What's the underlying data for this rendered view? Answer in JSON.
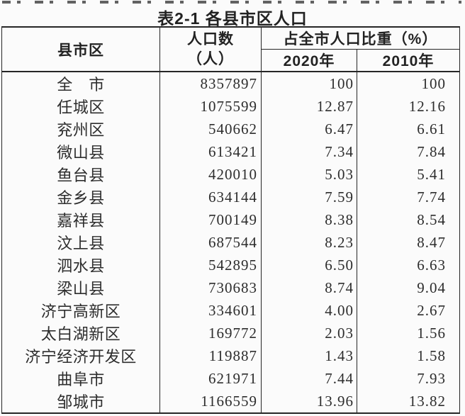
{
  "page": {
    "title": "表2-1 各县市区人口"
  },
  "colors": {
    "background": "#fbfbfb",
    "rule_line": "#262626",
    "text": "#2a2a2a"
  },
  "table": {
    "header": {
      "region": "县市区",
      "population_line1": "人口数",
      "population_line2": "（人）",
      "share_group": "占全市人口比重（%）",
      "year_2020": "2020年",
      "year_2010": "2010年"
    },
    "rows": [
      {
        "region": "全　市",
        "population": "8357897",
        "share_2020": "100",
        "share_2010": "100"
      },
      {
        "region": "任城区",
        "population": "1075599",
        "share_2020": "12.87",
        "share_2010": "12.16"
      },
      {
        "region": "兖州区",
        "population": "540662",
        "share_2020": "6.47",
        "share_2010": "6.61"
      },
      {
        "region": "微山县",
        "population": "613421",
        "share_2020": "7.34",
        "share_2010": "7.84"
      },
      {
        "region": "鱼台县",
        "population": "420010",
        "share_2020": "5.03",
        "share_2010": "5.41"
      },
      {
        "region": "金乡县",
        "population": "634144",
        "share_2020": "7.59",
        "share_2010": "7.74"
      },
      {
        "region": "嘉祥县",
        "population": "700149",
        "share_2020": "8.38",
        "share_2010": "8.54"
      },
      {
        "region": "汶上县",
        "population": "687544",
        "share_2020": "8.23",
        "share_2010": "8.47"
      },
      {
        "region": "泗水县",
        "population": "542895",
        "share_2020": "6.50",
        "share_2010": "6.63"
      },
      {
        "region": "梁山县",
        "population": "730683",
        "share_2020": "8.74",
        "share_2010": "9.04"
      },
      {
        "region": "济宁高新区",
        "population": "334601",
        "share_2020": "4.00",
        "share_2010": "2.67"
      },
      {
        "region": "太白湖新区",
        "population": "169772",
        "share_2020": "2.03",
        "share_2010": "1.56"
      },
      {
        "region": "济宁经济开发区",
        "population": "119887",
        "share_2020": "1.43",
        "share_2010": "1.58"
      },
      {
        "region": "曲阜市",
        "population": "621971",
        "share_2020": "7.44",
        "share_2010": "7.93"
      },
      {
        "region": "邹城市",
        "population": "1166559",
        "share_2020": "13.96",
        "share_2010": "13.82"
      }
    ]
  }
}
